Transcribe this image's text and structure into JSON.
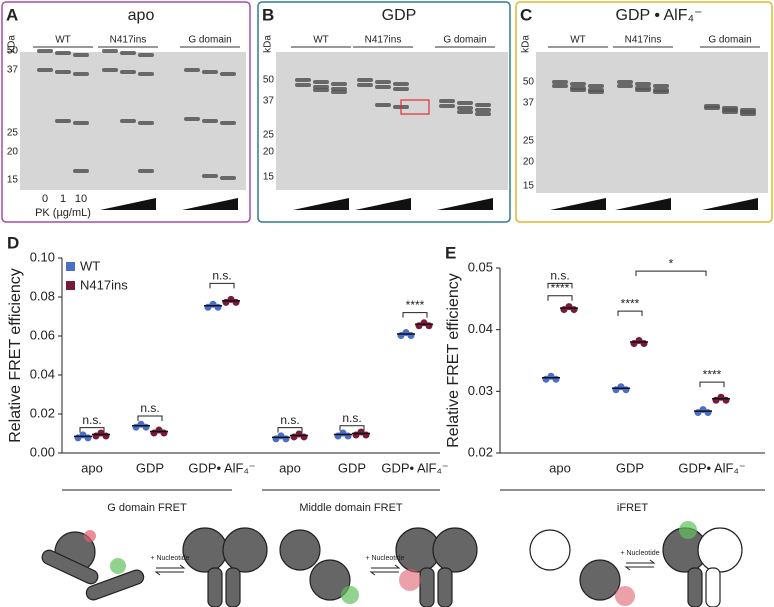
{
  "panels": [
    {
      "label": "A",
      "title": "apo",
      "unit": "kDa",
      "markers": [
        "50",
        "37",
        "25",
        "20",
        "15"
      ],
      "groups": [
        "WT",
        "N417ins",
        "G domain"
      ],
      "doses": [
        "0",
        "1",
        "10"
      ],
      "dose_label": "PK (µg/mL)"
    },
    {
      "label": "B",
      "title": "GDP",
      "unit": "kDa",
      "markers": [
        "50",
        "37",
        "25",
        "20",
        "15"
      ],
      "groups": [
        "WT",
        "N417ins",
        "G domain"
      ]
    },
    {
      "label": "C",
      "title": "GDP • AlF₄⁻",
      "unit": "kDa",
      "markers": [
        "50",
        "37",
        "25",
        "20",
        "15"
      ],
      "groups": [
        "WT",
        "N417ins",
        "G domain"
      ]
    }
  ],
  "chart_data": [
    {
      "type": "dot",
      "panel_label": "D",
      "y_label": "Relative FRET efficiency",
      "categories": [
        "apo",
        "GDP",
        "GDP• AlF₄⁻",
        "apo",
        "GDP",
        "GDP• AlF₄⁻"
      ],
      "groups": [
        "G domain FRET",
        "Middle domain FRET"
      ],
      "series": [
        {
          "name": "WT",
          "color": "#4a6fc9",
          "values": [
            0.0085,
            0.014,
            0.0755,
            0.008,
            0.0095,
            0.061
          ]
        },
        {
          "name": "N417ins",
          "color": "#7a1a3a",
          "values": [
            0.0095,
            0.011,
            0.078,
            0.009,
            0.01,
            0.066
          ]
        }
      ],
      "ylim": [
        0,
        0.1
      ],
      "yticks": [
        {
          "value": 0,
          "label": "0.00"
        },
        {
          "value": 0.02,
          "label": "0.02"
        },
        {
          "value": 0.04,
          "label": "0.04"
        },
        {
          "value": 0.06,
          "label": "0.06"
        },
        {
          "value": 0.08,
          "label": "0.08"
        },
        {
          "value": 0.1,
          "label": "0.10"
        }
      ],
      "annotations": [
        "n.s.",
        "n.s.",
        "n.s.",
        "n.s.",
        "n.s.",
        "****"
      ],
      "legend": "top-left"
    },
    {
      "type": "dot",
      "panel_label": "E",
      "y_label": "Relative FRET efficiency",
      "categories": [
        "apo",
        "GDP",
        "GDP• AlF₄⁻"
      ],
      "groups": [
        "iFRET"
      ],
      "series": [
        {
          "name": "WT",
          "color": "#4a6fc9",
          "values": [
            0.0322,
            0.0305,
            0.0268
          ]
        },
        {
          "name": "N417ins",
          "color": "#7a1a3a",
          "values": [
            0.0435,
            0.038,
            0.0288
          ]
        }
      ],
      "ylim": [
        0.02,
        0.05
      ],
      "yticks": [
        {
          "value": 0.02,
          "label": "0.02"
        },
        {
          "value": 0.03,
          "label": "0.03"
        },
        {
          "value": 0.04,
          "label": "0.04"
        },
        {
          "value": 0.05,
          "label": "0.05"
        }
      ],
      "annotations": [
        "n.s.",
        "****",
        "****",
        "****",
        "*"
      ]
    }
  ],
  "diagrams": [
    "+ Nucleotide",
    "+ Nucleotide",
    "+ Nucleotide"
  ]
}
